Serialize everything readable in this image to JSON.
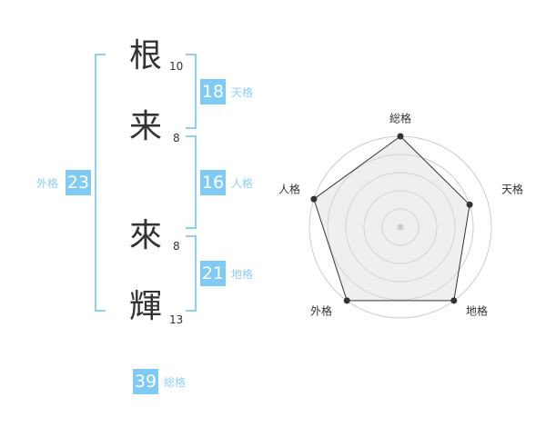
{
  "name": {
    "chars": [
      {
        "char": "根",
        "strokes": "10"
      },
      {
        "char": "来",
        "strokes": "8"
      },
      {
        "char": "來",
        "strokes": "8"
      },
      {
        "char": "輝",
        "strokes": "13"
      }
    ]
  },
  "kaku": {
    "tenkaku": {
      "label": "天格",
      "value": "18"
    },
    "jinkaku": {
      "label": "人格",
      "value": "16"
    },
    "chikaku": {
      "label": "地格",
      "value": "21"
    },
    "gaikaku": {
      "label": "外格",
      "value": "23"
    },
    "soukaku": {
      "label": "総格",
      "value": "39"
    }
  },
  "colors": {
    "accent": "#80caf6",
    "label": "#8dcff5"
  },
  "chart_data": {
    "type": "radar",
    "axes": [
      "総格",
      "天格",
      "地格",
      "外格",
      "人格"
    ],
    "values": [
      5,
      4,
      5,
      5,
      5
    ],
    "range": [
      0,
      5
    ],
    "rings": 5
  }
}
